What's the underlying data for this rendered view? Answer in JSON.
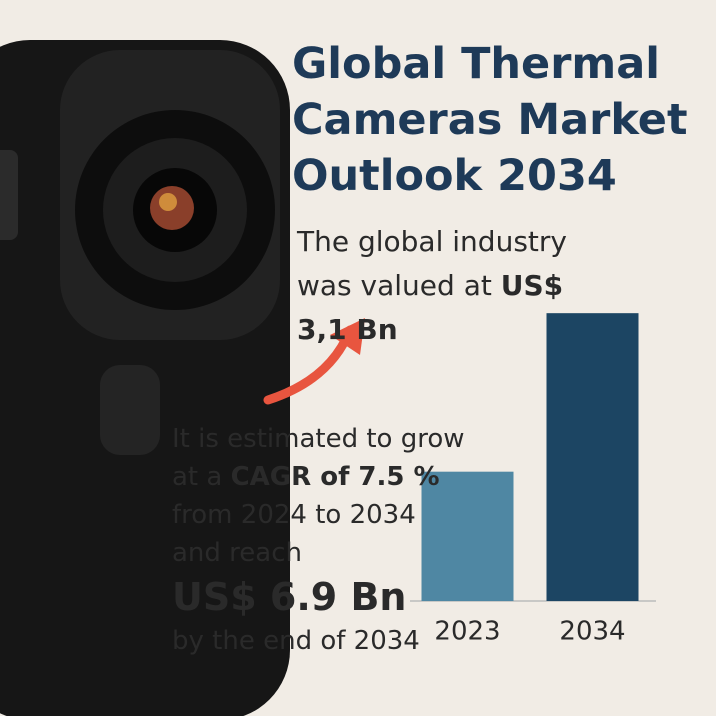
{
  "chart_data": {
    "type": "bar",
    "title": "Global Thermal Cameras Market Outlook 2034",
    "intro_text": "The global industry was valued at",
    "intro_value": "US$ 3,1 Bn",
    "growth_text": "It is estimated to grow at a",
    "growth_rate": "CAGR of 7.5 %",
    "growth_period": "from 2024 to 2034 and reach",
    "forecast_value": "US$ 6.9 Bn",
    "forecast_end": "by the end of 2034",
    "categories": [
      "2023",
      "2034"
    ],
    "values": [
      3.1,
      6.9
    ],
    "colors": [
      "#4f87a3",
      "#1c4563"
    ],
    "ylim": [
      0,
      7
    ]
  }
}
